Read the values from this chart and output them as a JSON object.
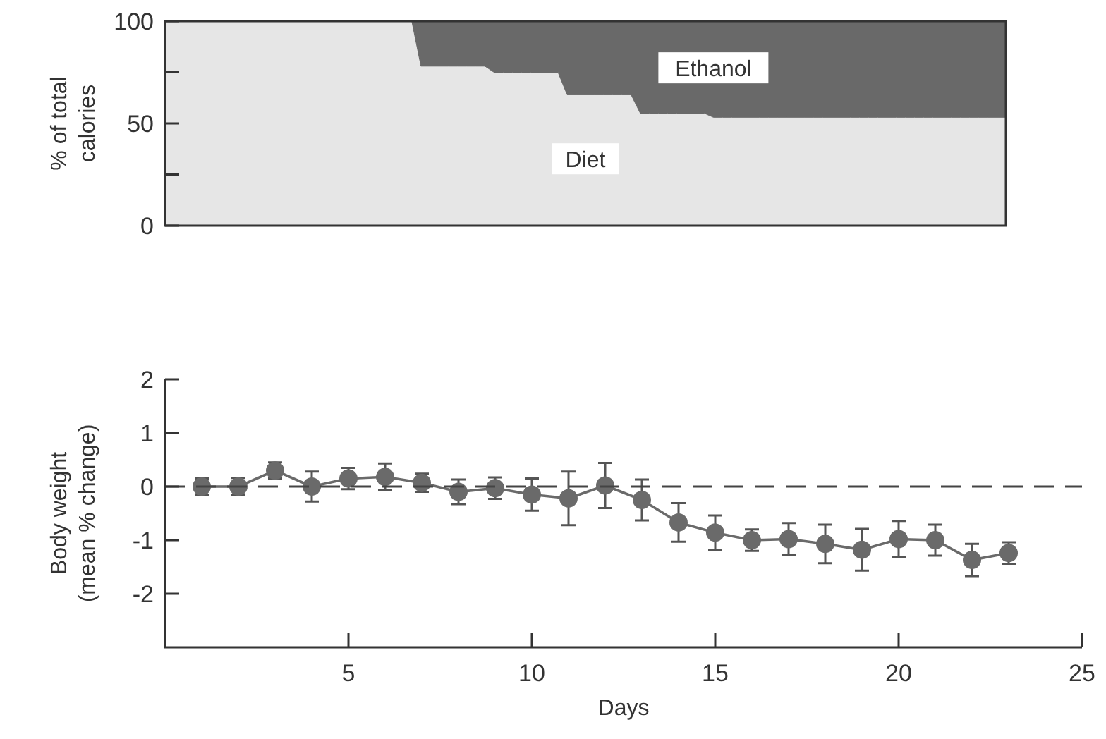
{
  "chart_data": [
    {
      "type": "area",
      "stacked": true,
      "ylabel": "% of total calories",
      "categories": [
        null,
        null,
        null,
        null,
        null,
        null,
        null,
        null,
        null,
        null,
        null,
        null,
        null,
        null,
        null,
        null,
        null,
        null,
        null,
        null,
        null,
        null,
        null,
        null,
        null,
        null,
        null,
        null,
        null,
        null,
        null,
        null,
        null,
        null,
        null,
        null,
        null,
        null,
        null,
        null,
        null,
        null,
        null,
        null,
        null,
        null,
        null,
        null,
        null,
        null,
        null,
        null,
        null,
        null,
        null,
        null,
        null,
        null,
        null,
        null,
        null,
        null,
        null,
        null,
        null,
        null,
        null,
        null,
        null,
        null,
        null,
        null,
        null,
        null,
        null,
        null,
        null,
        null,
        null,
        null,
        null,
        null,
        null,
        null,
        null,
        null,
        null,
        null,
        null,
        null,
        null,
        null,
        null
      ],
      "ylim": [
        0,
        100
      ],
      "yticks": [
        0,
        {
          "value": 25,
          "label": null
        },
        50,
        {
          "value": 75,
          "label": null
        },
        100
      ],
      "tick_labels": "y",
      "series": [
        {
          "name": "Diet",
          "color": "#e6e6e6",
          "values": [
            100,
            100,
            100,
            100,
            100,
            100,
            100,
            100,
            100,
            100,
            100,
            100,
            100,
            100,
            100,
            100,
            100,
            100,
            100,
            100,
            100,
            100,
            100,
            100,
            100,
            100,
            100,
            100,
            78,
            78,
            78,
            78,
            78,
            78,
            78,
            78,
            75,
            75,
            75,
            75,
            75,
            75,
            75,
            75,
            64,
            64,
            64,
            64,
            64,
            64,
            64,
            64,
            55,
            55,
            55,
            55,
            55,
            55,
            55,
            55,
            53,
            53,
            53,
            53,
            53,
            53,
            53,
            53,
            53,
            53,
            53,
            53,
            53,
            53,
            53,
            53,
            53,
            53,
            53,
            53,
            53,
            53,
            53,
            53,
            53,
            53,
            53,
            53,
            53,
            53,
            53,
            53,
            53
          ]
        },
        {
          "name": "Ethanol",
          "color": "#696969",
          "values": [
            0,
            0,
            0,
            0,
            0,
            0,
            0,
            0,
            0,
            0,
            0,
            0,
            0,
            0,
            0,
            0,
            0,
            0,
            0,
            0,
            0,
            0,
            0,
            0,
            0,
            0,
            0,
            0,
            22,
            22,
            22,
            22,
            22,
            22,
            22,
            22,
            25,
            25,
            25,
            25,
            25,
            25,
            25,
            25,
            36,
            36,
            36,
            36,
            36,
            36,
            36,
            36,
            45,
            45,
            45,
            45,
            45,
            45,
            45,
            45,
            47,
            47,
            47,
            47,
            47,
            47,
            47,
            47,
            47,
            47,
            47,
            47,
            47,
            47,
            47,
            47,
            47,
            47,
            47,
            47,
            47,
            47,
            47,
            47,
            47,
            47,
            47,
            47,
            47,
            47,
            47,
            47,
            47
          ]
        }
      ]
    },
    {
      "type": "line",
      "xlabel": "Days",
      "ylabel": "Body weight (mean % change)",
      "x": [
        1,
        2,
        3,
        4,
        5,
        6,
        7,
        8,
        9,
        10,
        11,
        12,
        13,
        14,
        15,
        16,
        17,
        18,
        19,
        20,
        21,
        22,
        23
      ],
      "xlim": [
        0,
        25
      ],
      "xticks": [
        5,
        10,
        15,
        20,
        25
      ],
      "ylim": [
        -3,
        2
      ],
      "yticks": [
        -2,
        -1,
        0,
        1,
        2
      ],
      "marker": "circle",
      "grid": false,
      "ref_lines": [
        {
          "axis": "y",
          "value": 0,
          "line_style": "dashed"
        }
      ],
      "series": [
        {
          "color": "#6a6a6a",
          "values": [
            0,
            0,
            0.3,
            0,
            0.15,
            0.18,
            0.07,
            -0.1,
            -0.03,
            -0.15,
            -0.22,
            0.02,
            -0.25,
            -0.67,
            -0.86,
            -1.0,
            -0.98,
            -1.07,
            -1.18,
            -0.98,
            -1.0,
            -1.37,
            -1.24
          ],
          "errors": [
            0.15,
            0.16,
            0.15,
            0.28,
            0.2,
            0.25,
            0.17,
            0.23,
            0.2,
            0.3,
            0.5,
            0.42,
            0.38,
            0.36,
            0.32,
            0.2,
            0.3,
            0.36,
            0.39,
            0.34,
            0.29,
            0.3,
            0.2
          ]
        }
      ]
    }
  ]
}
